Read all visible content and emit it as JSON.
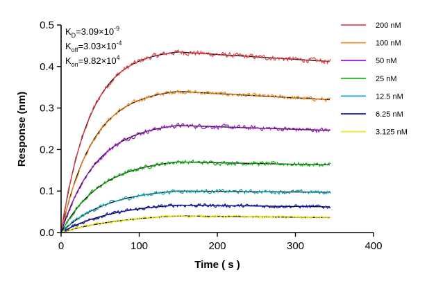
{
  "chart_data": {
    "type": "line",
    "title": "",
    "xlabel": "Time ( s )",
    "ylabel": "Response (nm)",
    "xlim": [
      0,
      400
    ],
    "ylim": [
      0,
      0.5
    ],
    "xticks": [
      0,
      100,
      200,
      300,
      400
    ],
    "yticks": [
      0.0,
      0.1,
      0.2,
      0.3,
      0.4,
      0.5
    ],
    "xtick_labels": [
      "0",
      "100",
      "200",
      "300",
      "400"
    ],
    "ytick_labels": [
      "0.0",
      "0.1",
      "0.2",
      "0.3",
      "0.4",
      "0.5"
    ],
    "grid": false,
    "legend_position": "top-right",
    "association_end": 150,
    "dissociation_end": 345,
    "series": [
      {
        "name": "200 nM",
        "color": "#e8454b",
        "plateau": 0.435,
        "end_value": 0.412,
        "noise": 0.005
      },
      {
        "name": "100 nM",
        "color": "#f08a1c",
        "plateau": 0.34,
        "end_value": 0.32,
        "noise": 0.004
      },
      {
        "name": "50 nM",
        "color": "#a020c8",
        "plateau": 0.258,
        "end_value": 0.246,
        "noise": 0.0045
      },
      {
        "name": "25 nM",
        "color": "#19b219",
        "plateau": 0.17,
        "end_value": 0.163,
        "noise": 0.004
      },
      {
        "name": "12.5 nM",
        "color": "#16a3b4",
        "plateau": 0.1,
        "end_value": 0.097,
        "noise": 0.004
      },
      {
        "name": "6.25 nM",
        "color": "#1a1ab8",
        "plateau": 0.066,
        "end_value": 0.062,
        "noise": 0.0035
      },
      {
        "name": "3.125 nM",
        "color": "#f0e61e",
        "plateau": 0.04,
        "end_value": 0.036,
        "noise": 0.003
      }
    ],
    "fit_color": "#000000",
    "annotations": [
      {
        "main": "K",
        "sub": "D",
        "rest": "=3.09×10",
        "sup": "-9"
      },
      {
        "main": "K",
        "sub": "off",
        "rest": "=3.03×10",
        "sup": "-4"
      },
      {
        "main": "K",
        "sub": "on",
        "rest": "=9.82×10",
        "sup": "4"
      }
    ]
  }
}
